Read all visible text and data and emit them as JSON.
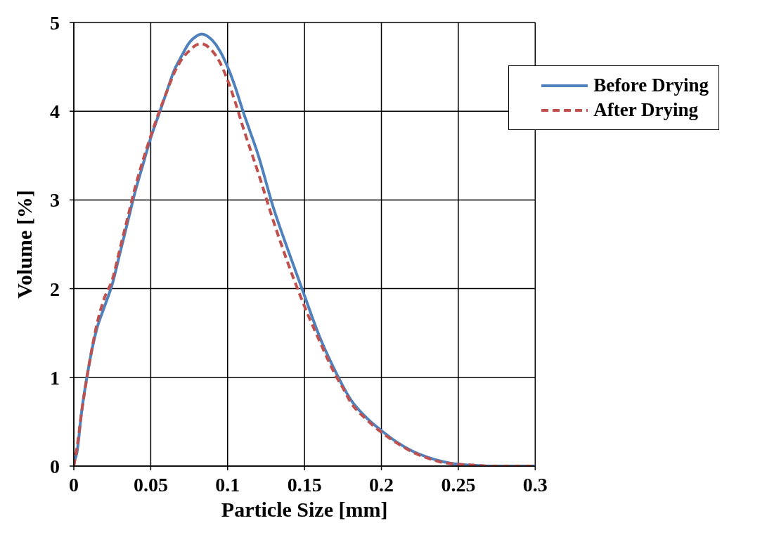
{
  "chart_data": {
    "type": "line",
    "xlabel": "Particle Size [mm]",
    "ylabel": "Volume [%]",
    "x": [
      0,
      0.002,
      0.005,
      0.01,
      0.015,
      0.02,
      0.025,
      0.03,
      0.035,
      0.04,
      0.045,
      0.05,
      0.055,
      0.06,
      0.065,
      0.07,
      0.075,
      0.08,
      0.083,
      0.09,
      0.095,
      0.1,
      0.105,
      0.11,
      0.12,
      0.13,
      0.14,
      0.15,
      0.16,
      0.17,
      0.175,
      0.18,
      0.19,
      0.2,
      0.21,
      0.22,
      0.23,
      0.24,
      0.25,
      0.26,
      0.27,
      0.3
    ],
    "series": [
      {
        "name": "Before Drying",
        "color": "#4f81bd",
        "line_style": "solid",
        "values": [
          0.05,
          0.15,
          0.6,
          1.15,
          1.55,
          1.8,
          2.05,
          2.4,
          2.75,
          3.1,
          3.4,
          3.7,
          3.95,
          4.2,
          4.45,
          4.62,
          4.77,
          4.85,
          4.87,
          4.8,
          4.68,
          4.5,
          4.27,
          4.0,
          3.5,
          2.9,
          2.4,
          1.92,
          1.45,
          1.07,
          0.9,
          0.75,
          0.55,
          0.4,
          0.27,
          0.17,
          0.1,
          0.05,
          0.02,
          0.01,
          0,
          0
        ]
      },
      {
        "name": "After Drying",
        "color": "#c0504d",
        "line_style": "dashed",
        "values": [
          0,
          0.2,
          0.6,
          1.15,
          1.6,
          1.9,
          2.1,
          2.45,
          2.8,
          3.15,
          3.45,
          3.72,
          3.97,
          4.2,
          4.42,
          4.58,
          4.68,
          4.75,
          4.76,
          4.68,
          4.55,
          4.35,
          4.1,
          3.82,
          3.3,
          2.75,
          2.25,
          1.8,
          1.4,
          1.03,
          0.88,
          0.72,
          0.53,
          0.38,
          0.26,
          0.16,
          0.09,
          0.04,
          0.02,
          0.01,
          0,
          0
        ]
      }
    ],
    "xlim": [
      0,
      0.3
    ],
    "xticks": [
      0,
      0.05,
      0.1,
      0.15,
      0.2,
      0.25,
      0.3
    ],
    "ylim": [
      0,
      5
    ],
    "yticks": [
      0,
      1,
      2,
      3,
      4,
      5
    ],
    "grid": true,
    "legend": "top right",
    "marker": "none"
  }
}
